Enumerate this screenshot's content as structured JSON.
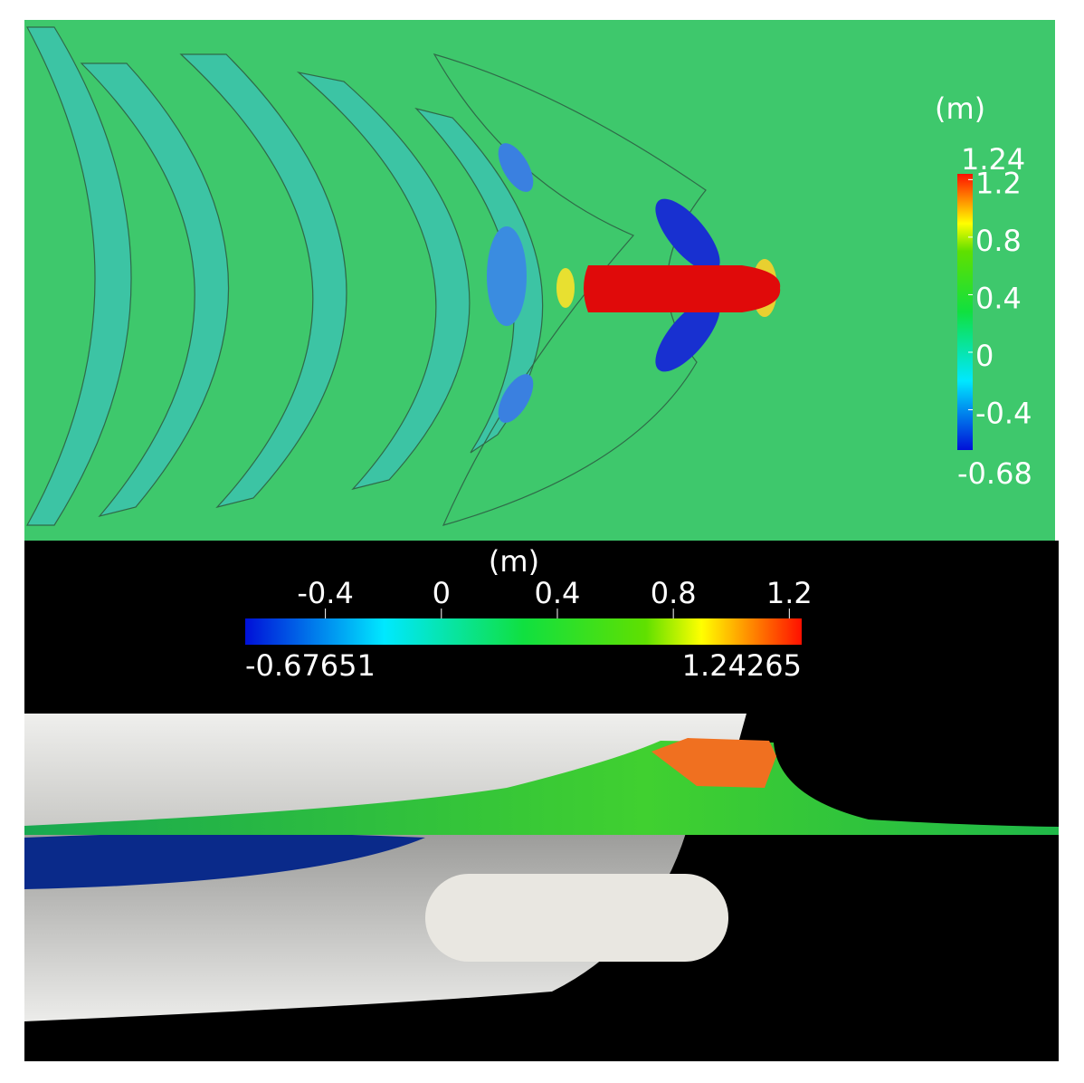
{
  "top_panel": {
    "colorbar": {
      "unit": "(m)",
      "range": [
        -0.68,
        1.24
      ],
      "ticks": [
        1.2,
        0.8,
        0.4,
        0,
        -0.4
      ]
    }
  },
  "bottom_panel": {
    "colorbar": {
      "unit": "(m)",
      "range": [
        -0.67651,
        1.24265
      ],
      "ticks": [
        -0.4,
        0,
        0.4,
        0.8,
        1.2
      ]
    }
  }
}
